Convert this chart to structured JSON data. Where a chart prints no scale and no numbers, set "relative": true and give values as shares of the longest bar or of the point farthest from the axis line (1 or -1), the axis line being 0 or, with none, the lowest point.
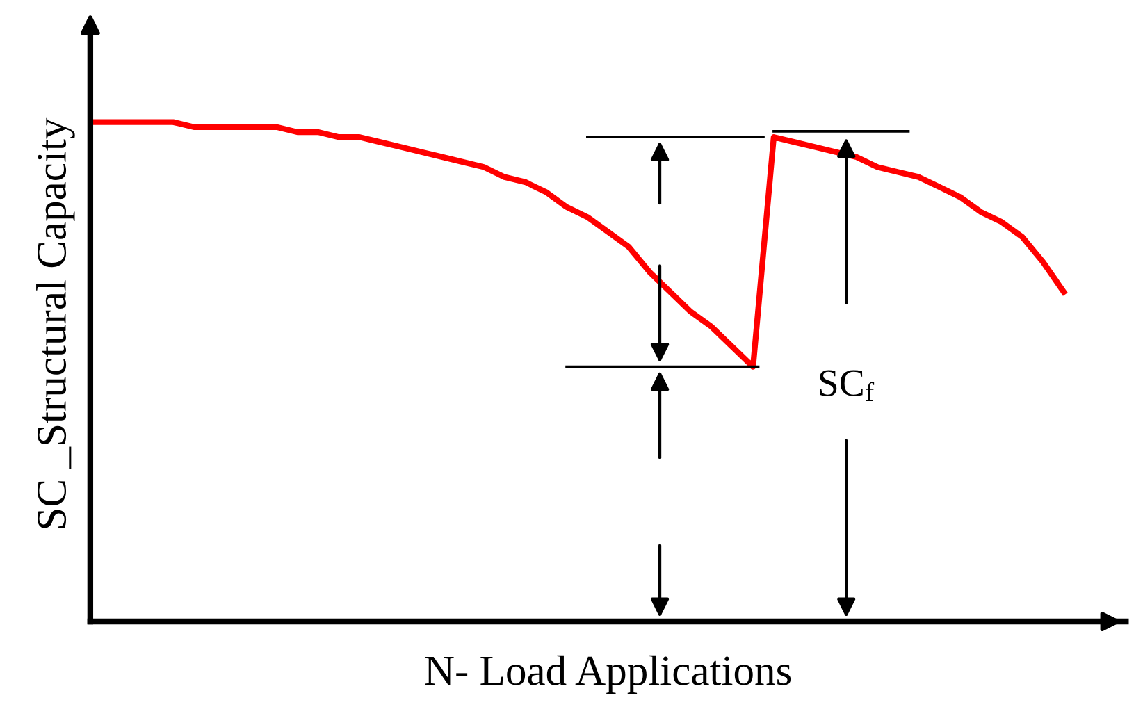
{
  "chart_data": {
    "type": "line",
    "relative": true,
    "xlabel": "N- Load Applications",
    "ylabel": "SC _Structural Capacity",
    "annotations": [
      "SC$_{f}$"
    ],
    "categories": [
      null,
      null,
      null,
      null,
      null,
      null,
      null,
      null,
      null,
      null,
      null,
      null,
      null,
      null,
      null,
      null,
      null,
      null,
      null,
      null,
      null,
      null,
      null,
      null,
      null,
      null,
      null,
      null,
      null,
      null,
      null,
      null,
      null,
      null,
      null,
      null,
      null,
      null,
      null,
      null,
      null,
      null,
      null,
      null,
      null,
      null,
      null,
      null
    ],
    "tick_labels": false,
    "line_style": "solid",
    "series": [
      {
        "color": "#ff0000",
        "values": [
          1.0,
          1.0,
          1.0,
          1.0,
          1.0,
          0.99,
          0.99,
          0.99,
          0.99,
          0.99,
          0.98,
          0.98,
          0.97,
          0.97,
          0.96,
          0.95,
          0.94,
          0.93,
          0.92,
          0.91,
          0.89,
          0.88,
          0.86,
          0.83,
          0.81,
          0.78,
          0.75,
          0.7,
          0.66,
          0.62,
          0.59,
          0.55,
          0.51,
          0.97,
          0.96,
          0.95,
          0.94,
          0.93,
          0.91,
          0.9,
          0.89,
          0.87,
          0.85,
          0.82,
          0.8,
          0.77,
          0.72,
          0.66
        ]
      }
    ]
  }
}
